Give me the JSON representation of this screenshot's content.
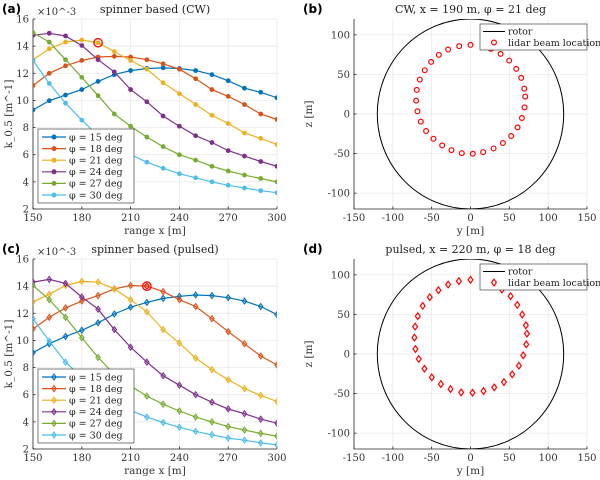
{
  "colors": {
    "phi15": "#0072BD",
    "phi18": "#D95319",
    "phi21": "#EDB120",
    "phi24": "#7E2F8E",
    "phi27": "#77AC30",
    "phi30": "#4DBEEE",
    "highlight": "#ff0000",
    "rotor": "#000000",
    "beam": "#ff0000"
  },
  "chart_data": [
    {
      "panel": "(a)",
      "type": "line",
      "title": "spinner based (CW)",
      "xlabel": "range x [m]",
      "ylabel": "k_0.5 [m^-1]",
      "y_exponent_label": "×10^-3",
      "xlim": [
        150,
        300
      ],
      "ylim": [
        2,
        16
      ],
      "xticks": [
        150,
        180,
        210,
        240,
        270,
        300
      ],
      "yticks": [
        2,
        4,
        6,
        8,
        10,
        12,
        14,
        16
      ],
      "grid": true,
      "marker": "circle",
      "legend_position": "bottom-left",
      "x": [
        150,
        160,
        170,
        180,
        190,
        200,
        210,
        220,
        230,
        240,
        250,
        260,
        270,
        280,
        290,
        300
      ],
      "series": [
        {
          "name": "φ = 15 deg",
          "color_key": "phi15",
          "values": [
            9.3,
            9.98,
            10.4,
            10.8,
            11.4,
            11.9,
            12.2,
            12.35,
            12.4,
            12.35,
            12.2,
            11.9,
            11.45,
            10.9,
            10.6,
            10.2
          ]
        },
        {
          "name": "φ = 18 deg",
          "color_key": "phi18",
          "values": [
            11.1,
            12.0,
            12.55,
            12.95,
            13.2,
            13.25,
            13.2,
            13.0,
            12.7,
            12.3,
            11.6,
            10.8,
            10.3,
            9.7,
            9.0,
            8.6
          ]
        },
        {
          "name": "φ = 21 deg",
          "color_key": "phi21",
          "values": [
            13.0,
            13.8,
            14.3,
            14.45,
            14.25,
            13.6,
            12.95,
            12.3,
            11.3,
            10.5,
            9.7,
            8.9,
            8.3,
            7.6,
            7.2,
            6.75
          ]
        },
        {
          "name": "φ = 24 deg",
          "color_key": "phi24",
          "values": [
            14.8,
            14.95,
            14.75,
            14.05,
            13.0,
            12.1,
            10.8,
            9.9,
            8.85,
            8.1,
            7.4,
            6.9,
            6.3,
            5.9,
            5.5,
            5.15
          ]
        },
        {
          "name": "φ = 27 deg",
          "color_key": "phi27",
          "values": [
            15.0,
            14.3,
            13.0,
            11.7,
            10.35,
            9.0,
            8.1,
            7.3,
            6.6,
            6.0,
            5.6,
            5.15,
            4.8,
            4.5,
            4.25,
            4.0
          ]
        },
        {
          "name": "φ = 30 deg",
          "color_key": "phi30",
          "values": [
            12.95,
            11.25,
            9.8,
            8.55,
            7.4,
            6.7,
            6.0,
            5.45,
            5.0,
            4.6,
            4.3,
            4.0,
            3.75,
            3.55,
            3.35,
            3.2
          ]
        }
      ],
      "highlight": {
        "x": 190,
        "y": 14.25,
        "series": "φ = 21 deg"
      }
    },
    {
      "panel": "(b)",
      "type": "scatter",
      "title": "CW, x = 190 m, φ = 21 deg",
      "xlabel": "y [m]",
      "ylabel": "z [m]",
      "xlim": [
        -150,
        150
      ],
      "ylim": [
        -120,
        120
      ],
      "xticks": [
        -150,
        -100,
        -50,
        0,
        50,
        100,
        150
      ],
      "yticks": [
        -100,
        -50,
        0,
        50,
        100
      ],
      "grid": true,
      "legend_position": "top-right",
      "legend": [
        "rotor",
        "lidar beam locations"
      ],
      "rotor_radius": 120,
      "marker": "circle",
      "points": [
        [
          0,
          87.3
        ],
        [
          -14.6,
          85.7
        ],
        [
          -28.8,
          81.4
        ],
        [
          -40.8,
          74.7
        ],
        [
          -50.7,
          65.8
        ],
        [
          -58.9,
          55.3
        ],
        [
          -65.3,
          43.5
        ],
        [
          -69.2,
          30.4
        ],
        [
          -70.0,
          16.9
        ],
        [
          -68.3,
          3.4
        ],
        [
          -64.0,
          -9.7
        ],
        [
          -57.2,
          -21.5
        ],
        [
          -47.7,
          -31.2
        ],
        [
          -36.5,
          -39.7
        ],
        [
          -24.5,
          -45.6
        ],
        [
          -11.2,
          -49.4
        ],
        [
          3.0,
          -50.2
        ],
        [
          16.3,
          -48.1
        ],
        [
          29.7,
          -43.5
        ],
        [
          41.7,
          -36.7
        ],
        [
          52.4,
          -27.8
        ],
        [
          60.6,
          -16.9
        ],
        [
          66.2,
          -5.1
        ],
        [
          69.6,
          8.4
        ],
        [
          70.5,
          21.9
        ],
        [
          69.2,
          32.1
        ],
        [
          65.3,
          45.6
        ],
        [
          58.9,
          57.0
        ],
        [
          49.8,
          67.5
        ],
        [
          38.7,
          75.9
        ],
        [
          26.2,
          82.3
        ]
      ]
    },
    {
      "panel": "(c)",
      "type": "line",
      "title": "spinner based (pulsed)",
      "xlabel": "range x [m]",
      "ylabel": "k_0.5 [m^-1]",
      "y_exponent_label": "×10^-3",
      "xlim": [
        150,
        300
      ],
      "ylim": [
        2,
        16
      ],
      "xticks": [
        150,
        180,
        210,
        240,
        270,
        300
      ],
      "yticks": [
        2,
        4,
        6,
        8,
        10,
        12,
        14,
        16
      ],
      "grid": true,
      "marker": "diamond",
      "legend_position": "bottom-left",
      "x": [
        150,
        160,
        170,
        180,
        190,
        200,
        210,
        220,
        230,
        240,
        250,
        260,
        270,
        280,
        290,
        300
      ],
      "series": [
        {
          "name": "φ = 15 deg",
          "color_key": "phi15",
          "values": [
            9.1,
            9.75,
            10.3,
            10.75,
            11.3,
            11.95,
            12.45,
            12.8,
            13.1,
            13.25,
            13.35,
            13.3,
            13.15,
            12.9,
            12.5,
            11.9
          ]
        },
        {
          "name": "φ = 18 deg",
          "color_key": "phi18",
          "values": [
            10.85,
            11.7,
            12.4,
            12.9,
            13.3,
            13.8,
            14.05,
            14.0,
            13.6,
            13.0,
            12.5,
            11.6,
            10.65,
            9.75,
            8.85,
            8.2
          ]
        },
        {
          "name": "φ = 21 deg",
          "color_key": "phi21",
          "values": [
            12.85,
            13.4,
            14.05,
            14.35,
            14.3,
            13.8,
            13.0,
            12.1,
            10.8,
            9.8,
            8.7,
            7.85,
            7.1,
            6.45,
            5.95,
            5.5
          ]
        },
        {
          "name": "φ = 24 deg",
          "color_key": "phi24",
          "values": [
            14.3,
            14.5,
            14.2,
            13.2,
            12.3,
            10.8,
            9.5,
            8.4,
            7.4,
            6.7,
            6.0,
            5.45,
            4.95,
            4.6,
            4.2,
            3.9
          ]
        },
        {
          "name": "φ = 27 deg",
          "color_key": "phi27",
          "values": [
            14.05,
            13.0,
            11.7,
            10.2,
            8.75,
            7.5,
            6.65,
            5.9,
            5.3,
            4.8,
            4.35,
            4.0,
            3.65,
            3.4,
            3.15,
            2.95
          ]
        },
        {
          "name": "φ = 30 deg",
          "color_key": "phi30",
          "values": [
            11.6,
            9.95,
            8.4,
            7.3,
            6.4,
            5.5,
            4.85,
            4.35,
            3.95,
            3.6,
            3.3,
            3.05,
            2.8,
            2.65,
            2.45,
            2.3
          ]
        }
      ],
      "highlight": {
        "x": 220,
        "y": 14.0,
        "series": "φ = 18 deg"
      }
    },
    {
      "panel": "(d)",
      "type": "scatter",
      "title": "pulsed, x = 220 m, φ = 18 deg",
      "xlabel": "y [m]",
      "ylabel": "z [m]",
      "xlim": [
        -150,
        150
      ],
      "ylim": [
        -120,
        120
      ],
      "xticks": [
        -150,
        -100,
        -50,
        0,
        50,
        100,
        150
      ],
      "yticks": [
        -100,
        -50,
        0,
        50,
        100
      ],
      "grid": true,
      "legend_position": "top-right",
      "legend": [
        "rotor",
        "lidar beam locations"
      ],
      "rotor_radius": 120,
      "marker": "diamond",
      "points": [
        [
          0,
          93.7
        ],
        [
          -15.0,
          92.0
        ],
        [
          -28.8,
          87.8
        ],
        [
          -41.3,
          80.6
        ],
        [
          -52.4,
          71.7
        ],
        [
          -61.5,
          60.8
        ],
        [
          -67.9,
          47.7
        ],
        [
          -71.3,
          34.6
        ],
        [
          -72.2,
          20.7
        ],
        [
          -70.9,
          6.3
        ],
        [
          -66.6,
          -6.3
        ],
        [
          -59.3,
          -18.6
        ],
        [
          -49.8,
          -29.5
        ],
        [
          -38.2,
          -38.0
        ],
        [
          -25.8,
          -44.3
        ],
        [
          -12.0,
          -48.5
        ],
        [
          2.6,
          -48.9
        ],
        [
          16.8,
          -46.8
        ],
        [
          30.5,
          -42.2
        ],
        [
          43.0,
          -35.4
        ],
        [
          53.7,
          -25.7
        ],
        [
          62.3,
          -14.8
        ],
        [
          67.9,
          -1.7
        ],
        [
          71.8,
          12.2
        ],
        [
          72.6,
          25.7
        ],
        [
          71.3,
          36.3
        ],
        [
          66.6,
          49.8
        ],
        [
          60.2,
          62.0
        ],
        [
          51.6,
          73.0
        ],
        [
          40.4,
          81.4
        ]
      ]
    }
  ]
}
